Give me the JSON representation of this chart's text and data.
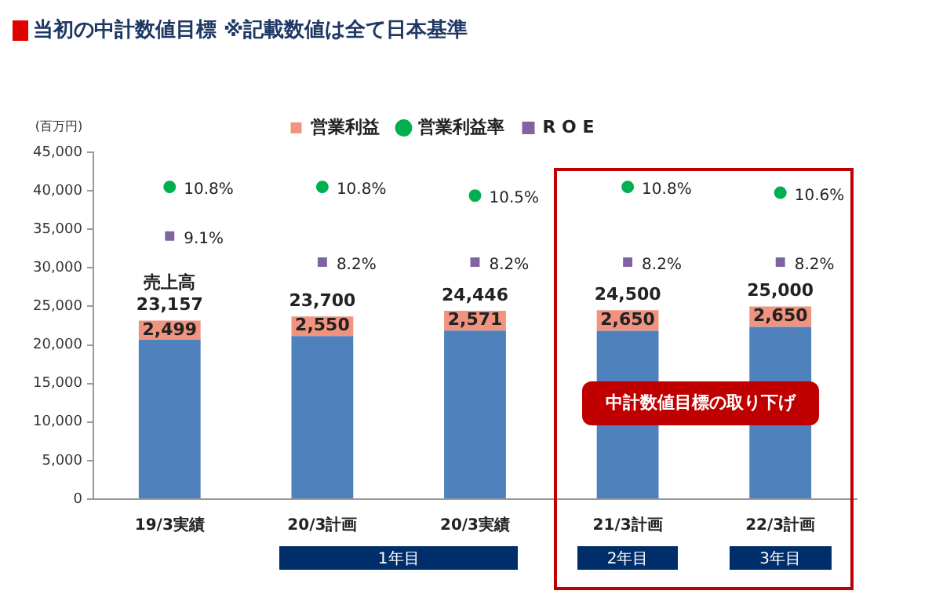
{
  "chart_data": {
    "type": "bar",
    "title": "当初の中計数値目標 ※記載数値は全て日本基準",
    "ylabel": "(百万円)",
    "categories": [
      "19/3実績",
      "20/3計画",
      "20/3実績",
      "21/3計画",
      "22/3計画"
    ],
    "stacked": true,
    "series": [
      {
        "color": "#4f81bd",
        "values": [
          20658,
          21150,
          21875,
          21850,
          22350
        ]
      },
      {
        "name": "営業利益",
        "color": "#f09480",
        "values": [
          2499,
          2550,
          2571,
          2650,
          2650
        ],
        "value_labels": [
          "2,499",
          "2,550",
          "2,571",
          "2,650",
          "2,650"
        ]
      },
      {
        "name": "営業利益率",
        "type": "scatter",
        "axis": "y2",
        "marker": "circle",
        "color": "#00b050",
        "values": [
          10.8,
          10.8,
          10.5,
          10.8,
          10.6
        ],
        "value_labels": [
          "10.8%",
          "10.8%",
          "10.5%",
          "10.8%",
          "10.6%"
        ]
      },
      {
        "name": "R O E",
        "type": "scatter",
        "axis": "y2",
        "marker": "square",
        "color": "#8064a2",
        "values": [
          9.1,
          8.2,
          8.2,
          8.2,
          8.2
        ],
        "value_labels": [
          "9.1%",
          "8.2%",
          "8.2%",
          "8.2%",
          "8.2%"
        ]
      }
    ],
    "totals": [
      "23,157",
      "23,700",
      "24,446",
      "24,500",
      "25,000"
    ],
    "ylim": [
      0,
      45000
    ],
    "yticks": [
      0,
      {
        "value": 5000,
        "label": "5,000"
      },
      {
        "value": 10000,
        "label": "10,000"
      },
      {
        "value": 15000,
        "label": "15,000"
      },
      {
        "value": 20000,
        "label": "20,000"
      },
      {
        "value": 25000,
        "label": "25,000"
      },
      {
        "value": 30000,
        "label": "30,000"
      },
      {
        "value": 35000,
        "label": "35,000"
      },
      {
        "value": 40000,
        "label": "40,000"
      },
      {
        "value": 45000,
        "label": "45,000"
      }
    ],
    "y2lim": [
      0,
      12
    ],
    "legend": "top",
    "grid": false,
    "annotations": [
      {
        "text": "売上高",
        "x": "19/3実績",
        "y": 23157
      },
      "中計数値目標の取り下げ",
      "1年目",
      "2年目",
      "3年目"
    ]
  }
}
